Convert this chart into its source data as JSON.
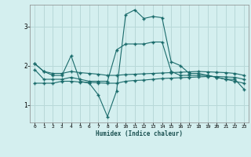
{
  "xlabel": "Humidex (Indice chaleur)",
  "background_color": "#d4efef",
  "grid_color": "#b8d8d8",
  "line_color": "#1a6b6b",
  "xlim": [
    -0.5,
    23.5
  ],
  "ylim": [
    0.55,
    3.55
  ],
  "yticks": [
    1,
    2,
    3
  ],
  "xticks": [
    0,
    1,
    2,
    3,
    4,
    5,
    6,
    7,
    8,
    9,
    10,
    11,
    12,
    13,
    14,
    15,
    16,
    17,
    18,
    19,
    20,
    21,
    22,
    23
  ],
  "series": [
    [
      2.05,
      1.85,
      1.75,
      1.75,
      2.25,
      1.6,
      1.55,
      1.25,
      0.7,
      1.35,
      3.3,
      3.42,
      3.2,
      3.25,
      3.22,
      2.1,
      2.0,
      1.8,
      1.8,
      1.75,
      1.7,
      1.65,
      1.65,
      1.4
    ],
    [
      1.9,
      1.65,
      1.65,
      1.65,
      1.7,
      1.65,
      1.6,
      1.6,
      1.6,
      2.4,
      2.55,
      2.55,
      2.55,
      2.6,
      2.6,
      1.85,
      1.75,
      1.75,
      1.75,
      1.75,
      1.7,
      1.65,
      1.6,
      1.55
    ],
    [
      1.55,
      1.55,
      1.55,
      1.6,
      1.6,
      1.58,
      1.57,
      1.56,
      1.55,
      1.55,
      1.6,
      1.62,
      1.63,
      1.65,
      1.67,
      1.68,
      1.69,
      1.7,
      1.71,
      1.72,
      1.72,
      1.71,
      1.7,
      1.65
    ],
    [
      2.05,
      1.85,
      1.8,
      1.8,
      1.85,
      1.82,
      1.8,
      1.78,
      1.75,
      1.75,
      1.77,
      1.78,
      1.79,
      1.8,
      1.81,
      1.82,
      1.83,
      1.84,
      1.85,
      1.84,
      1.83,
      1.82,
      1.8,
      1.75
    ]
  ],
  "figsize": [
    3.2,
    2.0
  ],
  "dpi": 100
}
